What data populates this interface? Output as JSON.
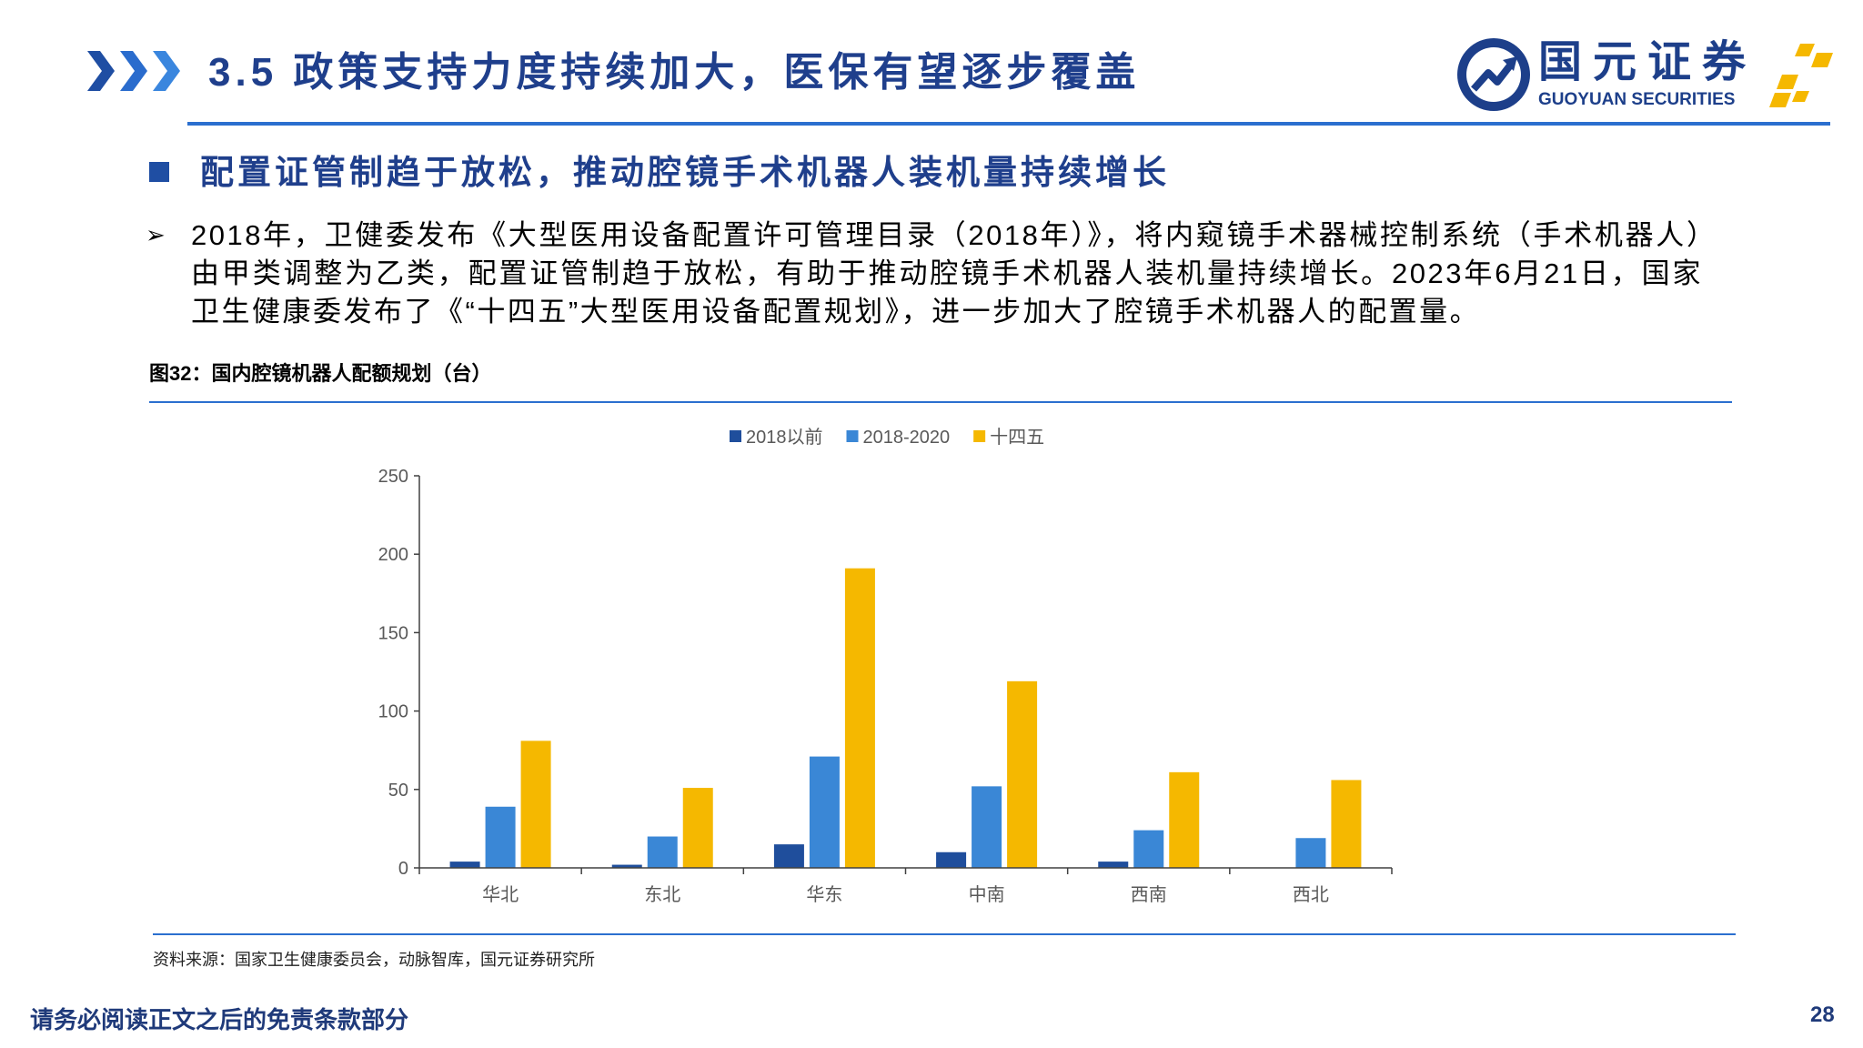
{
  "header": {
    "title": "3.5 政策支持力度持续加大，医保有望逐步覆盖",
    "chevron_icon": "triple-chevron-right-icon",
    "logo_cn": "国元证券",
    "logo_en": "GUOYUAN SECURITIES"
  },
  "section": {
    "heading": "配置证管制趋于放松，推动腔镜手术机器人装机量持续增长"
  },
  "body": {
    "bullets": [
      "2018年，卫健委发布《大型医用设备配置许可管理目录（2018年）》，将内窥镜手术器械控制系统（手术机器人）由甲类调整为乙类，配置证管制趋于放松，有助于推动腔镜手术机器人装机量持续增长。2023年6月21日，国家卫生健康委发布了《“十四五”大型医用设备配置规划》，进一步加大了腔镜手术机器人的配置量。"
    ]
  },
  "figure": {
    "source": "资料来源：国家卫生健康委员会，动脉智库，国元证券研究所"
  },
  "chart_data": {
    "type": "bar",
    "title": "图32：国内腔镜机器人配额规划（台）",
    "categories": [
      "华北",
      "东北",
      "华东",
      "中南",
      "西南",
      "西北"
    ],
    "series": [
      {
        "name": "2018以前",
        "values": [
          4,
          2,
          15,
          10,
          4,
          0
        ],
        "color": "#1F4E9C"
      },
      {
        "name": "2018-2020",
        "values": [
          39,
          20,
          71,
          52,
          24,
          19
        ],
        "color": "#3A87D6"
      },
      {
        "name": "十四五",
        "values": [
          81,
          51,
          191,
          119,
          61,
          56
        ],
        "color": "#F5B800"
      }
    ],
    "ylim": [
      0,
      250
    ],
    "yticks": [
      0,
      50,
      100,
      150,
      200,
      250
    ],
    "grid": false,
    "legend": "top"
  },
  "footer": {
    "disclaimer": "请务必阅读正文之后的免责条款部分",
    "page_number": "28"
  },
  "colors": {
    "title": "#1F3F8C",
    "accent": "#2B6FCF",
    "logo_navy": "#1D3F8A",
    "logo_gold": "#F5B800"
  }
}
